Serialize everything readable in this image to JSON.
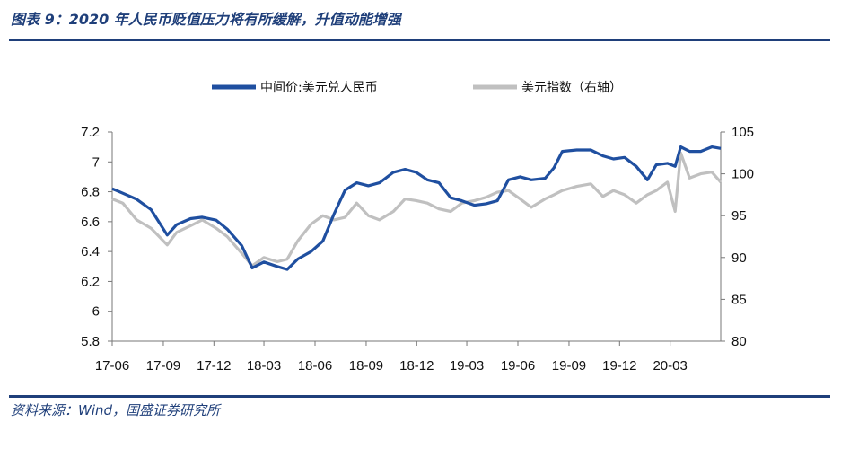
{
  "header": {
    "title": "图表 9：2020 年人民币贬值压力将有所缓解，升值动能增强"
  },
  "footer": {
    "source": "资料来源：Wind，国盛证券研究所"
  },
  "colors": {
    "brand": "#1f3f7a",
    "cny": "#1f4fa0",
    "dxy": "#c0c0c0"
  },
  "chart_data": {
    "type": "line",
    "title": "",
    "x_tick_labels": [
      "17-06",
      "17-09",
      "17-12",
      "18-03",
      "18-06",
      "18-09",
      "18-12",
      "19-03",
      "19-06",
      "19-09",
      "19-12",
      "20-03"
    ],
    "y_left": {
      "label": "",
      "range": [
        5.8,
        7.2
      ],
      "ticks": [
        "5.8",
        "6",
        "6.2",
        "6.4",
        "6.6",
        "6.8",
        "7",
        "7.2"
      ]
    },
    "y_right": {
      "label": "",
      "range": [
        80,
        105
      ],
      "ticks": [
        "80",
        "85",
        "90",
        "95",
        "100",
        "105"
      ]
    },
    "legend_placement": "top-center",
    "grid": false,
    "series": [
      {
        "name": "中间价:美元兑人民币",
        "axis": "left",
        "points": [
          [
            "2017-06-01",
            6.82
          ],
          [
            "2017-06-20",
            6.79
          ],
          [
            "2017-07-15",
            6.75
          ],
          [
            "2017-08-10",
            6.68
          ],
          [
            "2017-09-08",
            6.51
          ],
          [
            "2017-09-25",
            6.58
          ],
          [
            "2017-10-20",
            6.62
          ],
          [
            "2017-11-10",
            6.63
          ],
          [
            "2017-12-05",
            6.61
          ],
          [
            "2017-12-25",
            6.55
          ],
          [
            "2018-01-20",
            6.44
          ],
          [
            "2018-02-08",
            6.29
          ],
          [
            "2018-03-01",
            6.33
          ],
          [
            "2018-03-25",
            6.3
          ],
          [
            "2018-04-12",
            6.28
          ],
          [
            "2018-05-01",
            6.35
          ],
          [
            "2018-05-25",
            6.4
          ],
          [
            "2018-06-15",
            6.47
          ],
          [
            "2018-07-05",
            6.65
          ],
          [
            "2018-07-25",
            6.81
          ],
          [
            "2018-08-15",
            6.86
          ],
          [
            "2018-09-05",
            6.84
          ],
          [
            "2018-09-25",
            6.86
          ],
          [
            "2018-10-20",
            6.93
          ],
          [
            "2018-11-10",
            6.95
          ],
          [
            "2018-11-30",
            6.93
          ],
          [
            "2018-12-20",
            6.88
          ],
          [
            "2019-01-10",
            6.86
          ],
          [
            "2019-01-31",
            6.76
          ],
          [
            "2019-02-20",
            6.74
          ],
          [
            "2019-03-15",
            6.71
          ],
          [
            "2019-04-05",
            6.72
          ],
          [
            "2019-04-25",
            6.74
          ],
          [
            "2019-05-15",
            6.88
          ],
          [
            "2019-06-05",
            6.9
          ],
          [
            "2019-06-25",
            6.88
          ],
          [
            "2019-07-20",
            6.89
          ],
          [
            "2019-08-05",
            6.96
          ],
          [
            "2019-08-20",
            7.07
          ],
          [
            "2019-09-15",
            7.08
          ],
          [
            "2019-10-10",
            7.08
          ],
          [
            "2019-11-01",
            7.04
          ],
          [
            "2019-11-20",
            7.02
          ],
          [
            "2019-12-10",
            7.03
          ],
          [
            "2019-12-31",
            6.97
          ],
          [
            "2020-01-20",
            6.88
          ],
          [
            "2020-02-05",
            6.98
          ],
          [
            "2020-02-25",
            6.99
          ],
          [
            "2020-03-10",
            6.97
          ],
          [
            "2020-03-20",
            7.1
          ],
          [
            "2020-04-05",
            7.07
          ],
          [
            "2020-04-25",
            7.07
          ],
          [
            "2020-05-15",
            7.1
          ],
          [
            "2020-05-31",
            7.09
          ]
        ]
      },
      {
        "name": "美元指数（右轴）",
        "axis": "right",
        "points": [
          [
            "2017-06-01",
            97.0
          ],
          [
            "2017-06-20",
            96.5
          ],
          [
            "2017-07-15",
            94.5
          ],
          [
            "2017-08-10",
            93.5
          ],
          [
            "2017-09-08",
            91.5
          ],
          [
            "2017-09-25",
            93.0
          ],
          [
            "2017-10-20",
            93.8
          ],
          [
            "2017-11-10",
            94.5
          ],
          [
            "2017-12-05",
            93.5
          ],
          [
            "2017-12-25",
            92.5
          ],
          [
            "2018-01-20",
            90.5
          ],
          [
            "2018-02-08",
            89.0
          ],
          [
            "2018-03-01",
            90.0
          ],
          [
            "2018-03-25",
            89.5
          ],
          [
            "2018-04-12",
            89.8
          ],
          [
            "2018-05-01",
            92.0
          ],
          [
            "2018-05-25",
            94.0
          ],
          [
            "2018-06-15",
            95.0
          ],
          [
            "2018-07-05",
            94.5
          ],
          [
            "2018-07-25",
            94.8
          ],
          [
            "2018-08-15",
            96.5
          ],
          [
            "2018-09-05",
            95.0
          ],
          [
            "2018-09-25",
            94.5
          ],
          [
            "2018-10-20",
            95.5
          ],
          [
            "2018-11-10",
            97.0
          ],
          [
            "2018-11-30",
            96.8
          ],
          [
            "2018-12-20",
            96.5
          ],
          [
            "2019-01-10",
            95.8
          ],
          [
            "2019-01-31",
            95.5
          ],
          [
            "2019-02-20",
            96.5
          ],
          [
            "2019-03-15",
            96.8
          ],
          [
            "2019-04-05",
            97.2
          ],
          [
            "2019-04-25",
            97.8
          ],
          [
            "2019-05-15",
            98.0
          ],
          [
            "2019-06-05",
            97.0
          ],
          [
            "2019-06-25",
            96.0
          ],
          [
            "2019-07-20",
            97.0
          ],
          [
            "2019-08-05",
            97.5
          ],
          [
            "2019-08-20",
            98.0
          ],
          [
            "2019-09-15",
            98.5
          ],
          [
            "2019-10-10",
            98.8
          ],
          [
            "2019-11-01",
            97.3
          ],
          [
            "2019-11-20",
            98.0
          ],
          [
            "2019-12-10",
            97.5
          ],
          [
            "2019-12-31",
            96.5
          ],
          [
            "2020-01-20",
            97.5
          ],
          [
            "2020-02-05",
            98.0
          ],
          [
            "2020-02-25",
            99.0
          ],
          [
            "2020-03-10",
            95.5
          ],
          [
            "2020-03-20",
            102.5
          ],
          [
            "2020-04-05",
            99.5
          ],
          [
            "2020-04-25",
            100.0
          ],
          [
            "2020-05-15",
            100.2
          ],
          [
            "2020-05-31",
            99.0
          ]
        ]
      }
    ]
  }
}
